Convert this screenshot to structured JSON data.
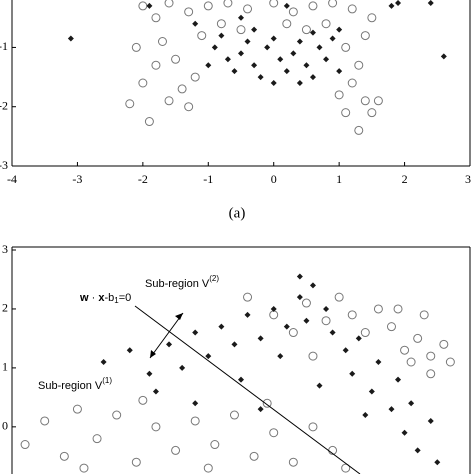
{
  "chart_data": [
    {
      "type": "scatter",
      "caption": "(a)",
      "xlim": [
        -4,
        3
      ],
      "xticks": [
        -4,
        -3,
        -2,
        -1,
        0,
        1,
        2,
        3
      ],
      "ylim": [
        -3,
        -0.2
      ],
      "yticks": [
        -1,
        -2,
        -3
      ],
      "grid": false,
      "series": [
        {
          "color": "#777777",
          "marker": "circle",
          "x": [
            -2.0,
            -1.8,
            -1.6,
            -1.3,
            -1.0,
            -0.7,
            -0.4,
            0,
            0.3,
            0.6,
            0.9,
            1.2,
            1.5,
            1.4,
            1.1,
            1.3,
            1.2,
            1.0,
            1.4,
            1.6,
            1.5,
            1.3,
            -2.2,
            -1.9,
            -2.0,
            -1.8,
            -2.1,
            -1.7,
            -1.5,
            -1.4,
            -1.6,
            -1.2,
            -1.1,
            -0.8,
            -0.5,
            0.2,
            0.5,
            0.8,
            -1.3,
            1.1
          ],
          "values": [
            -0.3,
            -0.5,
            -0.25,
            -0.4,
            -0.3,
            -0.25,
            -0.35,
            -0.25,
            -0.4,
            -0.3,
            -0.25,
            -0.35,
            -0.5,
            -0.8,
            -1.0,
            -1.3,
            -1.6,
            -1.8,
            -1.9,
            -1.9,
            -2.1,
            -2.4,
            -1.95,
            -2.25,
            -1.6,
            -1.3,
            -1.0,
            -0.9,
            -1.2,
            -1.7,
            -1.9,
            -1.5,
            -0.8,
            -0.6,
            -0.7,
            -0.6,
            -0.7,
            -0.6,
            -2.0,
            -2.1
          ]
        },
        {
          "color": "#1a1a1a",
          "marker": "diamond",
          "x": [
            -3.1,
            2.6,
            2.4,
            -1.9,
            1.8,
            1.9,
            -0.9,
            -0.7,
            -0.5,
            -0.3,
            -0.1,
            0.1,
            0.3,
            0.5,
            0.7,
            0.8,
            -0.6,
            -0.2,
            0.2,
            0.6,
            -0.8,
            -0.4,
            0,
            0.4,
            0.9,
            -0.5,
            0.2,
            -1.2,
            1.0,
            0.0,
            -0.3,
            0.6,
            -1.0,
            1.0,
            0.4
          ],
          "values": [
            -0.85,
            -1.15,
            -0.25,
            -0.3,
            -0.3,
            -0.25,
            -1.0,
            -1.2,
            -1.1,
            -1.3,
            -1.0,
            -1.2,
            -1.1,
            -1.3,
            -1.0,
            -1.2,
            -1.4,
            -1.5,
            -1.4,
            -1.5,
            -0.8,
            -0.9,
            -0.85,
            -0.9,
            -0.85,
            -0.5,
            -0.3,
            -0.6,
            -0.7,
            -1.6,
            -0.7,
            -0.75,
            -1.3,
            -1.4,
            -1.6
          ]
        }
      ]
    },
    {
      "type": "scatter",
      "xlim": [
        -4,
        3
      ],
      "ylim": [
        -0.8,
        3
      ],
      "yticks": [
        0,
        1,
        2,
        3
      ],
      "grid": false,
      "annotations": [
        {
          "text": "Sub-region V",
          "sup": "(2)"
        },
        {
          "text": "Sub-region V",
          "sup": "(1)"
        }
      ],
      "equation": [
        "w",
        " · ",
        "x",
        "-b",
        "1",
        "=0"
      ],
      "series": [
        {
          "color": "#777777",
          "marker": "circle",
          "x": [
            -3.8,
            -3.5,
            -3.2,
            -3.0,
            -2.7,
            -2.4,
            -2.1,
            -1.8,
            -1.5,
            -1.2,
            -0.9,
            -0.6,
            -0.3,
            0,
            0.3,
            0.6,
            0.9,
            1.1,
            -2.9,
            -1.0,
            -0.1,
            -2.0,
            -0.4,
            0.0,
            0.3,
            0.5,
            0.8,
            1.0,
            1.2,
            1.4,
            1.6,
            1.8,
            2.0,
            2.2,
            2.4,
            2.6,
            2.7,
            2.4,
            2.1,
            1.9,
            0.6,
            2.3
          ],
          "values": [
            -0.3,
            0.1,
            -0.5,
            0.3,
            -0.2,
            0.2,
            -0.6,
            0.0,
            -0.4,
            0.1,
            -0.3,
            0.2,
            -0.5,
            -0.1,
            -0.6,
            0.0,
            -0.4,
            -0.7,
            -0.7,
            -0.7,
            0.4,
            0.45,
            2.2,
            1.9,
            1.6,
            2.1,
            1.8,
            2.2,
            1.9,
            1.6,
            2.0,
            1.7,
            1.3,
            1.5,
            1.2,
            1.4,
            1.1,
            0.9,
            1.1,
            2.0,
            1.2,
            1.9
          ]
        },
        {
          "color": "#1a1a1a",
          "marker": "diamond",
          "x": [
            -2.6,
            -2.2,
            -1.9,
            -1.6,
            -1.4,
            -1.2,
            -1.0,
            -0.8,
            -0.6,
            -0.4,
            -0.2,
            0,
            0.2,
            0.4,
            0.5,
            0.6,
            0.8,
            0.9,
            1.1,
            1.2,
            1.3,
            1.5,
            1.6,
            1.8,
            1.9,
            2.0,
            2.1,
            2.2,
            2.4,
            2.5,
            0.4,
            -1.8,
            -1.2,
            -0.5,
            0.1,
            0.7,
            1.4,
            -0.2
          ],
          "values": [
            1.1,
            1.3,
            0.9,
            1.4,
            1.0,
            1.6,
            1.2,
            1.7,
            1.4,
            1.9,
            1.5,
            2.0,
            1.7,
            2.2,
            1.8,
            2.4,
            2.0,
            1.6,
            1.3,
            0.9,
            1.5,
            0.6,
            1.1,
            0.3,
            0.8,
            -0.1,
            0.4,
            -0.4,
            0.1,
            -0.6,
            2.55,
            0.6,
            0.4,
            0.8,
            1.2,
            0.7,
            0.2,
            0.3
          ]
        }
      ]
    }
  ]
}
